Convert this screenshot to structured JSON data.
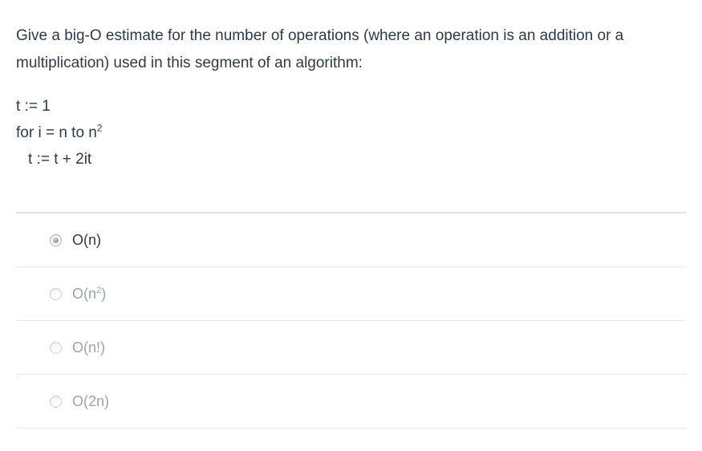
{
  "question": {
    "text": "Give a big-O estimate for the number of operations (where an operation is an addition or a multiplication) used in this segment of an algorithm:",
    "code": {
      "lines": [
        {
          "pre": "t := 1",
          "sup": ""
        },
        {
          "pre": "for i = n to n",
          "sup": "2"
        },
        {
          "pre": "t := t + 2it",
          "sup": ""
        }
      ]
    }
  },
  "options": [
    {
      "pre": "O(n)",
      "sup": "",
      "post": "",
      "selected": true
    },
    {
      "pre": "O(n",
      "sup": "2",
      "post": ")",
      "selected": false
    },
    {
      "pre": "O(n!)",
      "sup": "",
      "post": "",
      "selected": false
    },
    {
      "pre": "O(2n)",
      "sup": "",
      "post": "",
      "selected": false
    }
  ],
  "colors": {
    "text": "#2d3b45",
    "muted_option_text": "#9aa3aa",
    "divider": "#e8e8e8",
    "divider_top": "#e3e3e3",
    "background": "#ffffff"
  }
}
